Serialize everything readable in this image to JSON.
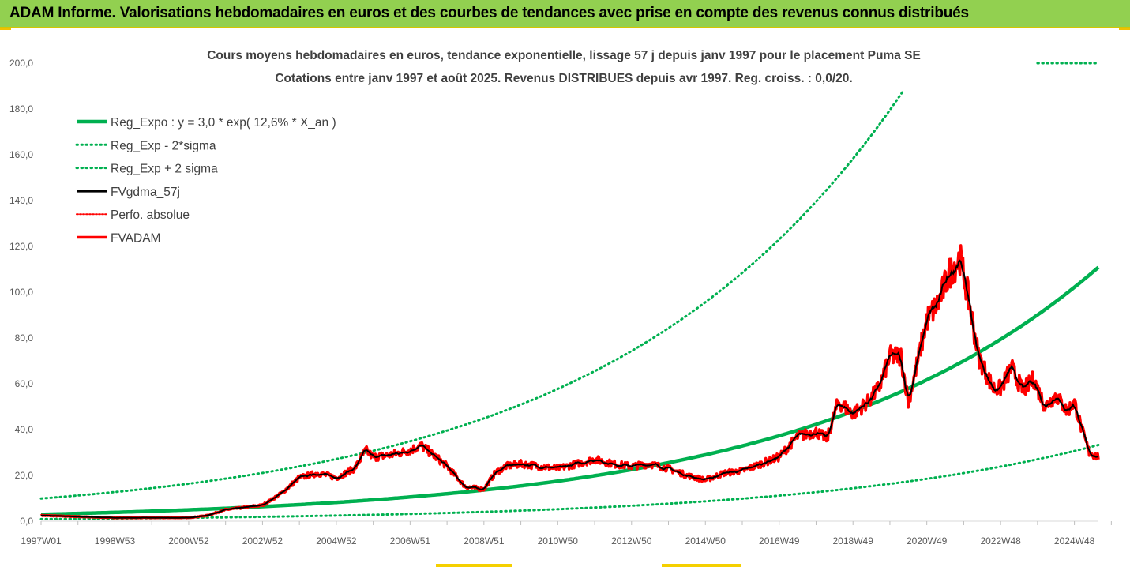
{
  "header": {
    "title": "ADAM Informe. Valorisations hebdomadaires en euros et des courbes de tendances avec prise en compte des revenus connus distribués",
    "background": "#92d050"
  },
  "chart_data": {
    "type": "line",
    "title_line1": "Cours moyens hebdomadaires en euros, tendance exponentielle, lissage 57 j depuis janv 1997  pour le placement Puma SE",
    "title_line2": "Cotations entre janv 1997 et août 2025. Revenus DISTRIBUES depuis avr 1997. Reg.  croiss. : 0,0/20.",
    "ylim": [
      0,
      200
    ],
    "y_ticks": [
      "0,0",
      "20,0",
      "40,0",
      "60,0",
      "80,0",
      "100,0",
      "120,0",
      "140,0",
      "160,0",
      "180,0",
      "200,0"
    ],
    "x_range_years": [
      1997.0,
      2025.65
    ],
    "x_ticks": [
      {
        "label": "1997W01",
        "year": 1997.0
      },
      {
        "label": "1998W53",
        "year": 1999.0
      },
      {
        "label": "2000W52",
        "year": 2001.0
      },
      {
        "label": "2002W52",
        "year": 2003.0
      },
      {
        "label": "2004W52",
        "year": 2005.0
      },
      {
        "label": "2006W51",
        "year": 2007.0
      },
      {
        "label": "2008W51",
        "year": 2009.0
      },
      {
        "label": "2010W50",
        "year": 2011.0
      },
      {
        "label": "2012W50",
        "year": 2013.0
      },
      {
        "label": "2014W50",
        "year": 2015.0
      },
      {
        "label": "2016W49",
        "year": 2017.0
      },
      {
        "label": "2018W49",
        "year": 2019.0
      },
      {
        "label": "2020W49",
        "year": 2021.0
      },
      {
        "label": "2022W48",
        "year": 2023.0
      },
      {
        "label": "2024W48",
        "year": 2025.0
      }
    ],
    "grid": false,
    "legend_position": "top-left",
    "regression": {
      "a": 3.0,
      "rate_pct": 12.6
    },
    "series": [
      {
        "name": "Reg_Expo : y = 3,0 * exp( 12,6% *  X_an )",
        "color": "#00b050",
        "style": "solid"
      },
      {
        "name": "Reg_Exp - 2*sigma",
        "color": "#00b050",
        "style": "dotted"
      },
      {
        "name": "Reg_Exp + 2 sigma",
        "color": "#00b050",
        "style": "dotted"
      },
      {
        "name": "FVgdma_57j",
        "color": "#000000",
        "style": "solid"
      },
      {
        "name": "Perfo. absolue",
        "color": "#ff0000",
        "style": "dotted"
      },
      {
        "name": "FVADAM",
        "color": "#ff0000",
        "style": "solid"
      }
    ],
    "band_factors": {
      "lower": 0.3,
      "upper": 3.3
    },
    "upper_band_clip_value": 200,
    "price_points": {
      "x": [
        1997.0,
        1998.0,
        1999.0,
        2000.0,
        2001.0,
        2001.5,
        2002.0,
        2002.5,
        2003.0,
        2003.5,
        2004.0,
        2004.5,
        2005.0,
        2005.5,
        2005.8,
        2006.0,
        2006.5,
        2007.0,
        2007.3,
        2007.7,
        2008.0,
        2008.5,
        2009.0,
        2009.3,
        2009.6,
        2010.0,
        2010.5,
        2011.0,
        2011.5,
        2012.0,
        2012.5,
        2013.0,
        2013.5,
        2014.0,
        2014.5,
        2015.0,
        2015.5,
        2016.0,
        2016.5,
        2017.0,
        2017.5,
        2018.0,
        2018.3,
        2018.6,
        2019.0,
        2019.4,
        2019.7,
        2020.0,
        2020.3,
        2020.5,
        2020.8,
        2021.0,
        2021.3,
        2021.6,
        2021.9,
        2022.1,
        2022.4,
        2022.8,
        2023.0,
        2023.3,
        2023.6,
        2023.9,
        2024.2,
        2024.5,
        2024.8,
        2025.0,
        2025.2,
        2025.4,
        2025.65
      ],
      "y": [
        2.5,
        2.0,
        1.5,
        1.5,
        1.5,
        2.5,
        5.0,
        6.0,
        7.0,
        12.0,
        19.0,
        21.0,
        19.0,
        23.0,
        31.0,
        28.0,
        29.0,
        31.0,
        33.0,
        28.0,
        24.0,
        15.0,
        14.0,
        21.0,
        24.0,
        25.0,
        24.0,
        23.0,
        25.0,
        27.0,
        25.0,
        24.0,
        25.0,
        23.0,
        20.0,
        18.0,
        21.0,
        22.0,
        25.0,
        28.0,
        37.0,
        39.0,
        36.0,
        52.0,
        47.0,
        52.0,
        58.0,
        72.0,
        72.0,
        52.0,
        73.0,
        88.0,
        95.0,
        108.0,
        115.0,
        100.0,
        72.0,
        58.0,
        58.0,
        67.0,
        57.0,
        62.0,
        50.0,
        55.0,
        48.0,
        52.0,
        40.0,
        30.0,
        28.0
      ]
    }
  }
}
